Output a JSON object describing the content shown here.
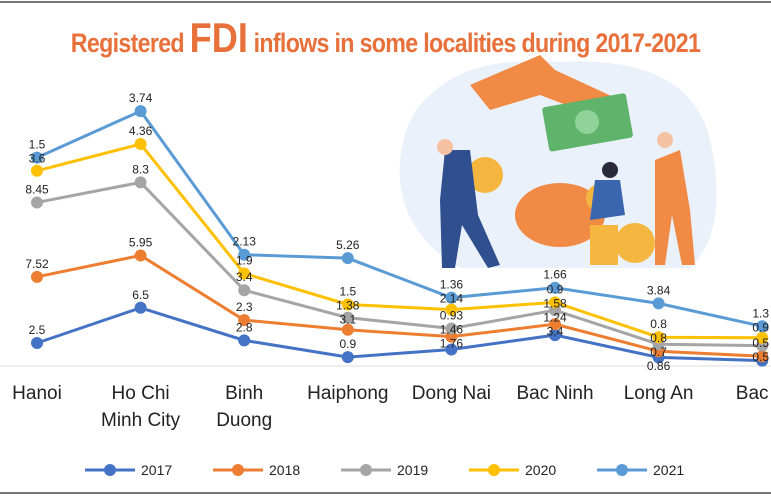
{
  "chart_data": {
    "type": "line",
    "title_parts": [
      "Registered ",
      "FDI",
      " inflows in some localities during 2017-2021"
    ],
    "categories": [
      [
        "Hanoi"
      ],
      [
        "Ho Chi",
        "Minh City"
      ],
      [
        "Binh",
        "Duong"
      ],
      [
        "Haiphong"
      ],
      [
        "Dong Nai"
      ],
      [
        "Bac Ninh"
      ],
      [
        "Long An"
      ],
      [
        "Bac G"
      ]
    ],
    "stacked": true,
    "grid": false,
    "legend_position": "bottom",
    "series": [
      {
        "name": "2017",
        "color": "#4472c4",
        "values": [
          2.5,
          6.5,
          2.8,
          0.9,
          1.76,
          3.4,
          0.86,
          0.5
        ],
        "labels": [
          "2.5",
          "6.5",
          "2.8",
          "0.9",
          "1.76",
          "3.4",
          "0.86",
          "0.5"
        ]
      },
      {
        "name": "2018",
        "color": "#ed7d31",
        "values": [
          7.52,
          5.95,
          2.3,
          3.1,
          1.46,
          1.24,
          0.7,
          0.5
        ],
        "labels": [
          "7.52",
          "5.95",
          "2.3",
          "3.1",
          "1.46",
          "1.24",
          "0.7",
          "0.5"
        ]
      },
      {
        "name": "2019",
        "color": "#a5a5a5",
        "values": [
          8.45,
          8.3,
          3.4,
          1.38,
          0.93,
          1.58,
          0.8,
          1.2
        ],
        "labels": [
          "8.45",
          "8.3",
          "3.4",
          "1.38",
          "0.93",
          "1.58",
          "0.8",
          ""
        ]
      },
      {
        "name": "2020",
        "color": "#ffc000",
        "values": [
          3.6,
          4.36,
          1.9,
          1.5,
          2.14,
          0.9,
          0.8,
          0.9
        ],
        "labels": [
          "3.6",
          "4.36",
          "1.9",
          "1.5",
          "2.14",
          "0.9",
          "0.8",
          "0.9"
        ]
      },
      {
        "name": "2021",
        "color": "#5b9bd5",
        "values": [
          1.5,
          3.74,
          2.13,
          5.26,
          1.36,
          1.66,
          3.84,
          1.3
        ],
        "labels": [
          "1.5",
          "3.74",
          "2.13",
          "5.26",
          "1.36",
          "1.66",
          "3.84",
          "1.3"
        ]
      }
    ]
  }
}
